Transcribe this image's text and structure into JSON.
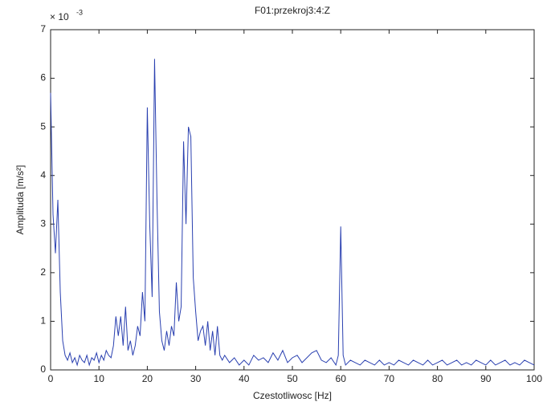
{
  "chart_data": {
    "type": "line",
    "title": "F01:przekroj3:4:Z",
    "xlabel": "Czestotliwosc [Hz]",
    "ylabel": "Amplituda [m/s²]",
    "y_scale_label": {
      "base": "× 10",
      "exponent": "-3"
    },
    "xlim": [
      0,
      100
    ],
    "xticks": [
      0,
      10,
      20,
      30,
      40,
      50,
      60,
      70,
      80,
      90,
      100
    ],
    "ylim": [
      0,
      7
    ],
    "yticks": [
      0,
      1,
      2,
      3,
      4,
      5,
      6,
      7
    ],
    "grid": false,
    "series": [
      {
        "color": "#2a40b0",
        "x": [
          0,
          0.5,
          1,
          1.5,
          2,
          2.5,
          3,
          3.5,
          4,
          4.5,
          5,
          5.5,
          6,
          6.5,
          7,
          7.5,
          8,
          8.5,
          9,
          9.5,
          10,
          10.5,
          11,
          11.5,
          12,
          12.5,
          13,
          13.5,
          14,
          14.5,
          15,
          15.5,
          16,
          16.5,
          17,
          17.5,
          18,
          18.5,
          19,
          19.5,
          20,
          20.5,
          21,
          21.5,
          22,
          22.5,
          23,
          23.5,
          24,
          24.5,
          25,
          25.5,
          26,
          26.5,
          27,
          27.5,
          28,
          28.5,
          29,
          29.5,
          30,
          30.5,
          31,
          31.5,
          32,
          32.5,
          33,
          33.5,
          34,
          34.5,
          35,
          35.5,
          36,
          37,
          38,
          39,
          40,
          41,
          42,
          43,
          44,
          45,
          46,
          47,
          48,
          49,
          50,
          51,
          52,
          53,
          54,
          55,
          56,
          57,
          58,
          59,
          59.5,
          60,
          60.5,
          61,
          62,
          63,
          64,
          65,
          66,
          67,
          68,
          69,
          70,
          71,
          72,
          73,
          74,
          75,
          76,
          77,
          78,
          79,
          80,
          81,
          82,
          83,
          84,
          85,
          86,
          87,
          88,
          89,
          90,
          91,
          92,
          93,
          94,
          95,
          96,
          97,
          98,
          99,
          100
        ],
        "values": [
          5.7,
          3.2,
          2.4,
          3.5,
          1.6,
          0.6,
          0.3,
          0.2,
          0.35,
          0.15,
          0.25,
          0.1,
          0.3,
          0.2,
          0.15,
          0.3,
          0.1,
          0.25,
          0.2,
          0.35,
          0.15,
          0.3,
          0.2,
          0.4,
          0.3,
          0.25,
          0.5,
          1.1,
          0.7,
          1.1,
          0.5,
          1.3,
          0.4,
          0.6,
          0.3,
          0.5,
          0.9,
          0.7,
          1.6,
          1.0,
          5.4,
          3.0,
          1.5,
          6.4,
          3.5,
          1.2,
          0.6,
          0.4,
          0.8,
          0.5,
          0.9,
          0.7,
          1.8,
          1.0,
          1.3,
          4.7,
          3.0,
          5.0,
          4.8,
          1.9,
          1.2,
          0.6,
          0.8,
          0.9,
          0.5,
          1.0,
          0.4,
          0.8,
          0.3,
          0.9,
          0.3,
          0.2,
          0.3,
          0.15,
          0.25,
          0.1,
          0.2,
          0.1,
          0.3,
          0.2,
          0.25,
          0.15,
          0.35,
          0.2,
          0.4,
          0.15,
          0.25,
          0.3,
          0.15,
          0.25,
          0.35,
          0.4,
          0.2,
          0.15,
          0.25,
          0.1,
          0.3,
          2.95,
          0.3,
          0.1,
          0.2,
          0.15,
          0.1,
          0.2,
          0.15,
          0.1,
          0.2,
          0.1,
          0.15,
          0.1,
          0.2,
          0.15,
          0.1,
          0.2,
          0.15,
          0.1,
          0.2,
          0.1,
          0.15,
          0.2,
          0.1,
          0.15,
          0.2,
          0.1,
          0.15,
          0.1,
          0.2,
          0.15,
          0.1,
          0.2,
          0.1,
          0.15,
          0.2,
          0.1,
          0.15,
          0.1,
          0.2,
          0.15,
          0.1
        ]
      }
    ]
  }
}
